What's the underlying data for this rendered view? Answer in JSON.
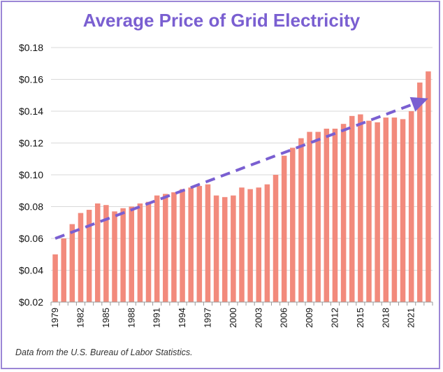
{
  "chart_data": {
    "type": "bar",
    "title": "Average Price of Grid Electricity",
    "xlabel": "",
    "ylabel": "",
    "ylim": [
      0.02,
      0.18
    ],
    "yticks": [
      0.02,
      0.04,
      0.06,
      0.08,
      0.1,
      0.12,
      0.14,
      0.16,
      0.18
    ],
    "ytick_labels": [
      "$0.02",
      "$0.04",
      "$0.06",
      "$0.08",
      "$0.10",
      "$0.12",
      "$0.14",
      "$0.16",
      "$0.18"
    ],
    "xtick_labels": [
      "1979",
      "1982",
      "1985",
      "1988",
      "1991",
      "1994",
      "1997",
      "2000",
      "2003",
      "2006",
      "2009",
      "2012",
      "2015",
      "2018",
      "2021"
    ],
    "categories": [
      "1979",
      "1980",
      "1981",
      "1982",
      "1983",
      "1984",
      "1985",
      "1986",
      "1987",
      "1988",
      "1989",
      "1990",
      "1991",
      "1992",
      "1993",
      "1994",
      "1995",
      "1996",
      "1997",
      "1998",
      "1999",
      "2000",
      "2001",
      "2002",
      "2003",
      "2004",
      "2005",
      "2006",
      "2007",
      "2008",
      "2009",
      "2010",
      "2011",
      "2012",
      "2013",
      "2014",
      "2015",
      "2016",
      "2017",
      "2018",
      "2019",
      "2020",
      "2021",
      "2022",
      "2023"
    ],
    "values": [
      0.05,
      0.06,
      0.069,
      0.076,
      0.078,
      0.082,
      0.081,
      0.077,
      0.079,
      0.08,
      0.082,
      0.083,
      0.087,
      0.088,
      0.089,
      0.091,
      0.092,
      0.093,
      0.094,
      0.087,
      0.086,
      0.087,
      0.092,
      0.091,
      0.092,
      0.094,
      0.1,
      0.112,
      0.117,
      0.123,
      0.127,
      0.127,
      0.129,
      0.129,
      0.132,
      0.137,
      0.138,
      0.134,
      0.133,
      0.136,
      0.136,
      0.135,
      0.14,
      0.158,
      0.165
    ],
    "trendline": {
      "style": "dashed-arrow",
      "start": {
        "category": "1979",
        "value": 0.06
      },
      "end": {
        "category": "2023",
        "value": 0.148
      }
    },
    "grid": true,
    "source": "Data from the U.S. Bureau of Labor Statistics."
  },
  "colors": {
    "bar": "#f28a7c",
    "trend": "#7a5fd1",
    "title": "#7a5fd1",
    "frame": "#9b86d6",
    "grid": "#d9d9d9"
  }
}
